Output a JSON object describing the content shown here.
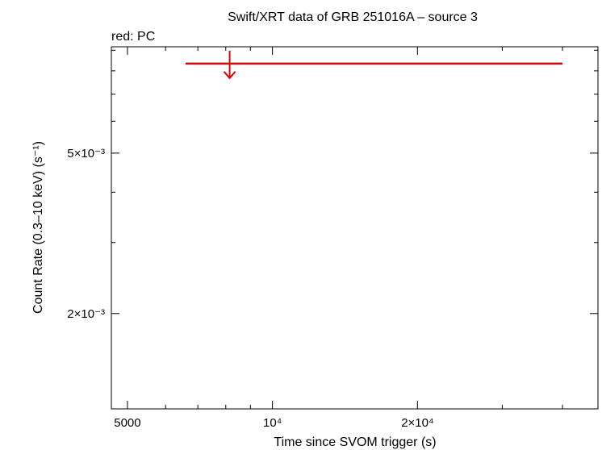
{
  "chart_data": {
    "type": "scatter",
    "title": "Swift/XRT data of GRB 251016A – source 3",
    "subtitle": "red: PC",
    "x_label": "Time since SVOM trigger (s)",
    "y_label": "Count Rate (0.3–10 keV) (s⁻¹)",
    "x_scale": "log",
    "y_scale": "log",
    "xlim": [
      4630,
      47400
    ],
    "ylim": [
      0.00116,
      0.00918
    ],
    "xticks": [
      5000,
      {
        "value": 10000,
        "label": "10⁴"
      },
      {
        "value": 20000,
        "label": "2×10⁴"
      }
    ],
    "xminor": [
      6000,
      7000,
      8000,
      9000,
      30000,
      40000
    ],
    "yticks": [
      {
        "value": 0.002,
        "label": "2×10⁻³"
      },
      {
        "value": 0.005,
        "label": "5×10⁻³"
      }
    ],
    "yminor": [
      0.003,
      0.004,
      0.006,
      0.007,
      0.008,
      0.009
    ],
    "series": [
      {
        "name": "PC",
        "color": "#e00000",
        "upper_limit": true,
        "x": [
          8150
        ],
        "xerr_minus": [
          1550
        ],
        "xerr_plus": [
          31850
        ],
        "values": [
          0.00834
        ]
      }
    ]
  }
}
